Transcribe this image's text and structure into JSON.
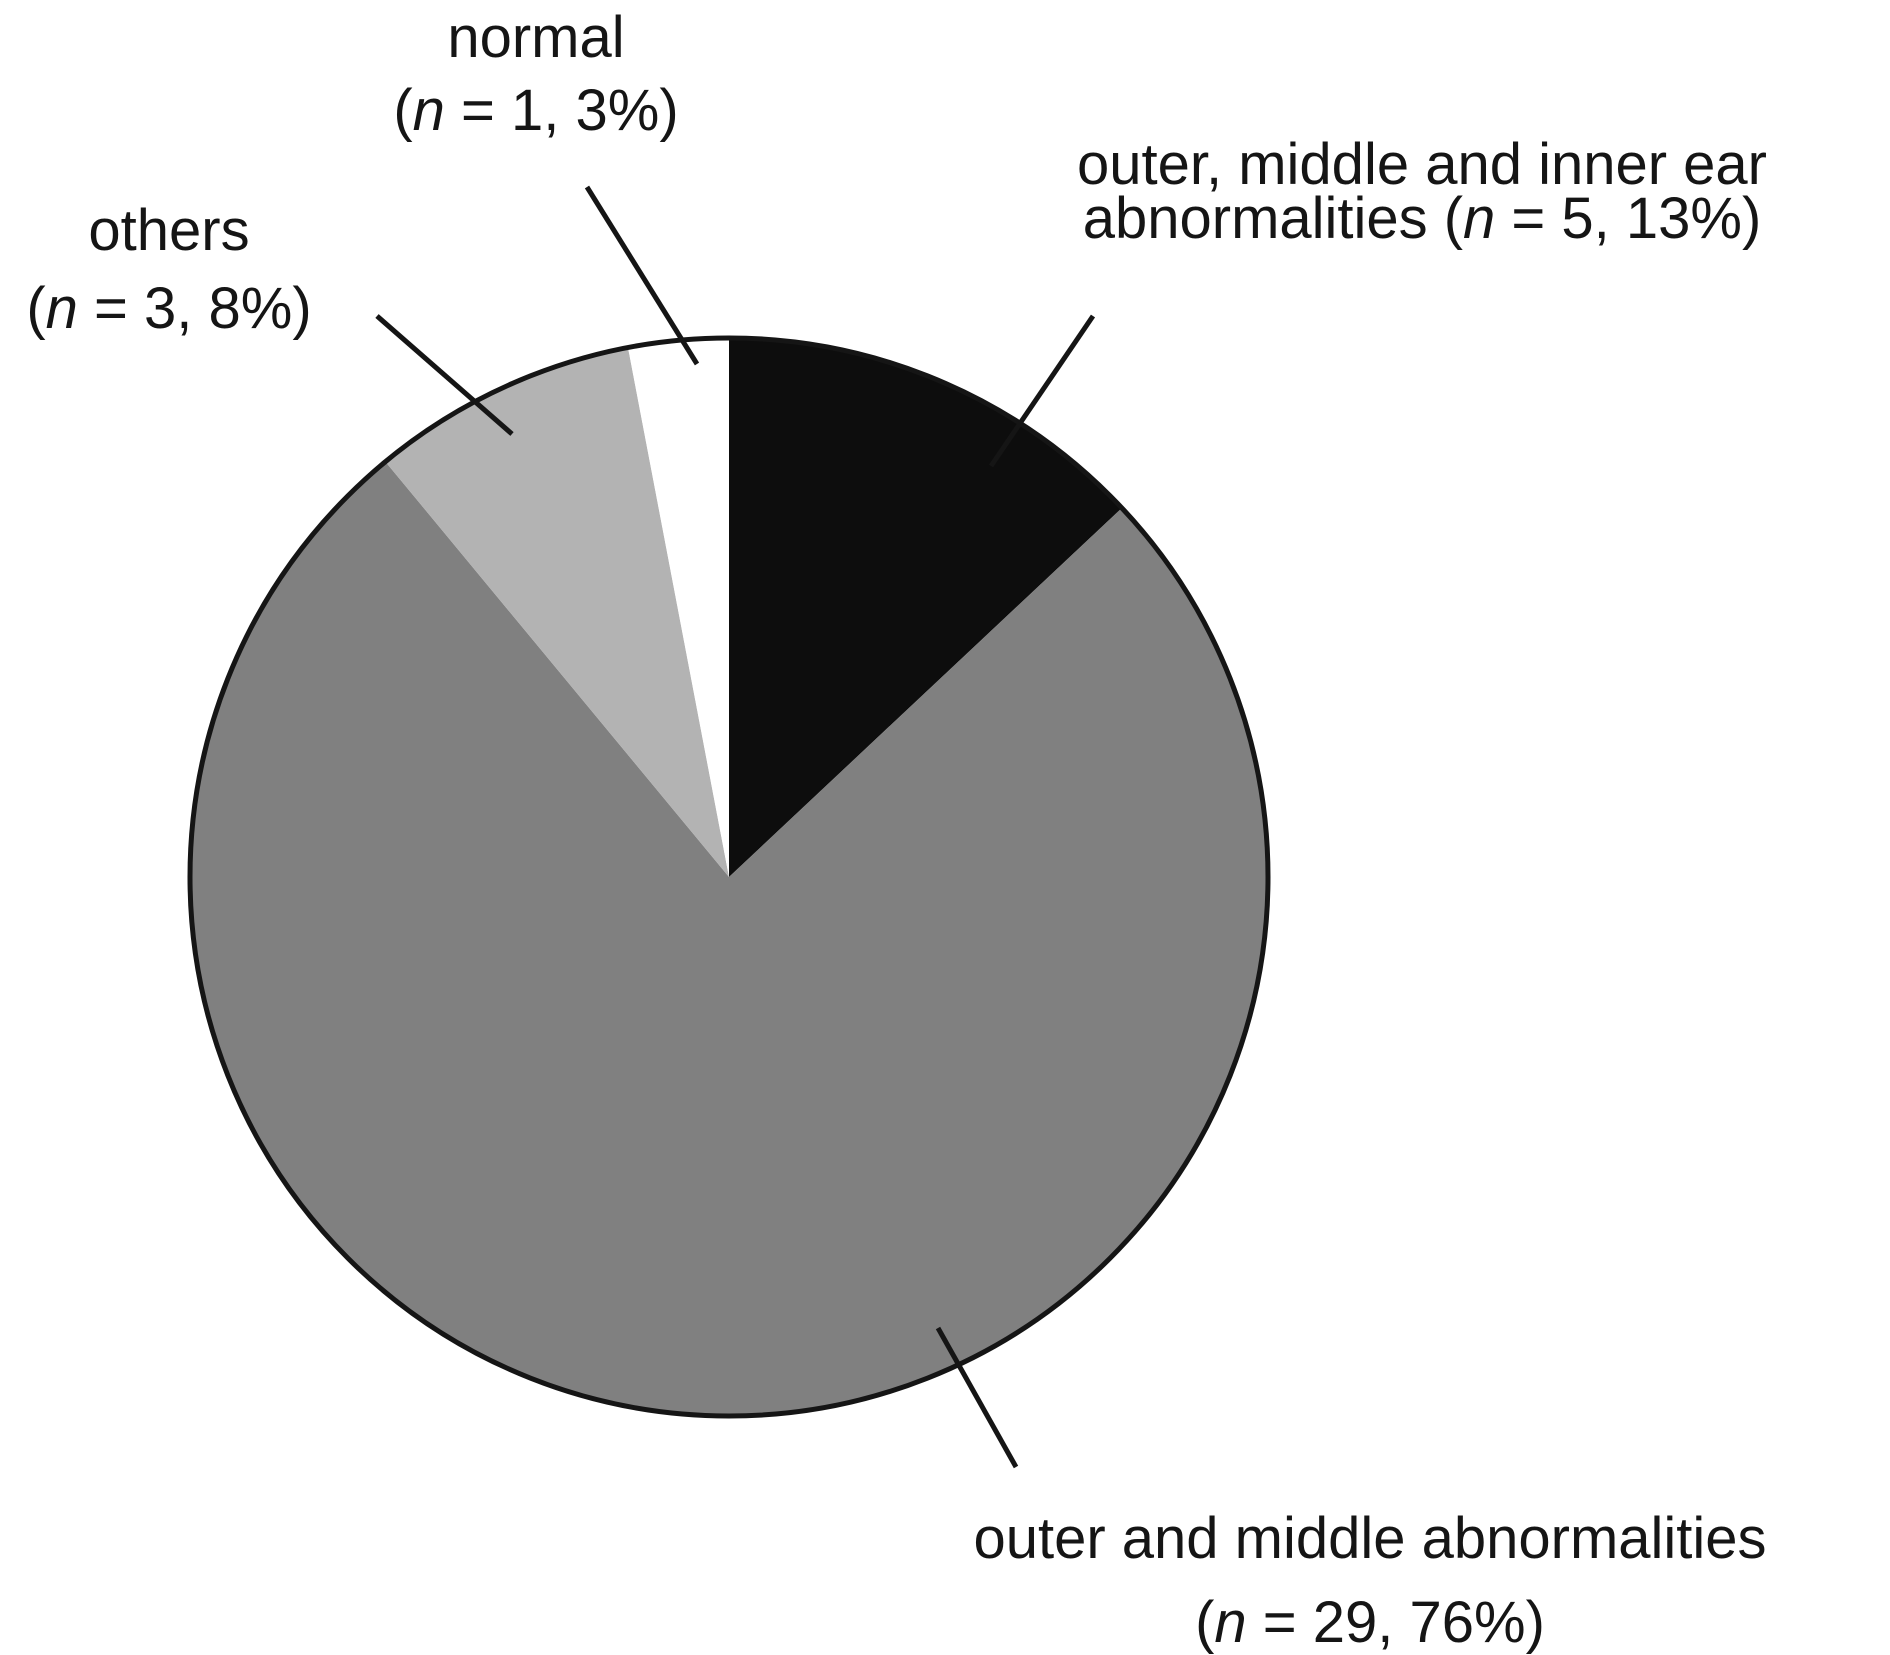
{
  "chart_data": {
    "type": "pie",
    "categories": [
      "outer, middle and inner ear abnormalities",
      "outer and middle abnormalities",
      "others",
      "normal"
    ],
    "values": [
      13,
      76,
      8,
      3
    ],
    "value_labels": [
      "(n = 5, 13%)",
      "(n = 29, 76%)",
      "(n = 3, 8%)",
      "(n = 1, 3%)"
    ],
    "colors": [
      "#0d0d0d",
      "#808080",
      "#b3b3b3",
      "#ffffff"
    ]
  }
}
